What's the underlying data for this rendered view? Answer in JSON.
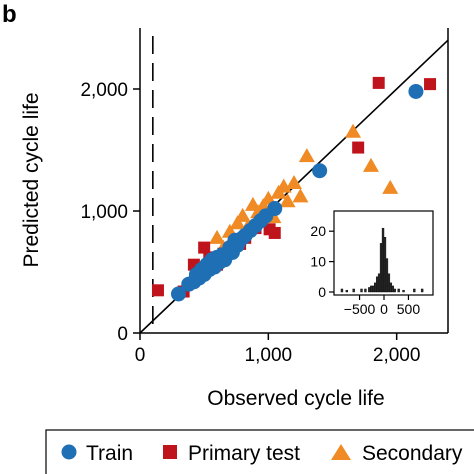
{
  "panel_label": "b",
  "colors": {
    "train": "#1f6fb5",
    "primary_test": "#c0141c",
    "secondary_test": "#f08a24",
    "axis": "#000000"
  },
  "chart_data": {
    "type": "scatter",
    "xlabel": "Observed cycle life",
    "ylabel": "Predicted cycle life",
    "xlim": [
      0,
      2400
    ],
    "ylim": [
      0,
      2500
    ],
    "xticks": [
      0,
      1000,
      2000
    ],
    "xtick_labels": [
      "0",
      "1,000",
      "2,000"
    ],
    "yticks": [
      0,
      1000,
      2000
    ],
    "ytick_labels": [
      "0",
      "1,000",
      "2,000"
    ],
    "identity_line": true,
    "threshold_line_x": 100,
    "legend": {
      "placement": "bottom",
      "entries": [
        "Train",
        "Primary test",
        "Secondary"
      ]
    },
    "series": [
      {
        "name": "Train",
        "marker": "circle",
        "points": [
          [
            300,
            320
          ],
          [
            380,
            400
          ],
          [
            420,
            420
          ],
          [
            440,
            480
          ],
          [
            460,
            450
          ],
          [
            480,
            520
          ],
          [
            500,
            480
          ],
          [
            520,
            560
          ],
          [
            540,
            520
          ],
          [
            560,
            600
          ],
          [
            580,
            540
          ],
          [
            600,
            620
          ],
          [
            620,
            580
          ],
          [
            640,
            640
          ],
          [
            660,
            600
          ],
          [
            700,
            700
          ],
          [
            720,
            660
          ],
          [
            740,
            760
          ],
          [
            760,
            720
          ],
          [
            800,
            780
          ],
          [
            820,
            800
          ],
          [
            860,
            840
          ],
          [
            900,
            880
          ],
          [
            940,
            920
          ],
          [
            980,
            960
          ],
          [
            1050,
            1020
          ],
          [
            1400,
            1330
          ],
          [
            2150,
            1980
          ]
        ]
      },
      {
        "name": "Primary test",
        "marker": "square",
        "points": [
          [
            140,
            350
          ],
          [
            340,
            340
          ],
          [
            420,
            560
          ],
          [
            500,
            700
          ],
          [
            540,
            620
          ],
          [
            600,
            560
          ],
          [
            650,
            650
          ],
          [
            700,
            680
          ],
          [
            780,
            730
          ],
          [
            820,
            780
          ],
          [
            900,
            860
          ],
          [
            1010,
            850
          ],
          [
            1050,
            820
          ],
          [
            1700,
            1520
          ],
          [
            1860,
            2050
          ],
          [
            2260,
            2040
          ]
        ]
      },
      {
        "name": "Secondary",
        "marker": "triangle",
        "points": [
          [
            600,
            780
          ],
          [
            650,
            700
          ],
          [
            700,
            830
          ],
          [
            760,
            900
          ],
          [
            800,
            960
          ],
          [
            840,
            870
          ],
          [
            880,
            1050
          ],
          [
            920,
            990
          ],
          [
            960,
            1040
          ],
          [
            1000,
            1100
          ],
          [
            1040,
            950
          ],
          [
            1080,
            1150
          ],
          [
            1120,
            1200
          ],
          [
            1150,
            1080
          ],
          [
            1200,
            1230
          ],
          [
            1250,
            1120
          ],
          [
            1300,
            1450
          ],
          [
            1660,
            1650
          ],
          [
            1800,
            1370
          ],
          [
            1950,
            1190
          ]
        ]
      }
    ],
    "inset": {
      "type": "histogram",
      "xlim": [
        -900,
        900
      ],
      "ylim": [
        0,
        25
      ],
      "xticks": [
        -500,
        0,
        500
      ],
      "xtick_labels": [
        "−500",
        "0",
        "500"
      ],
      "yticks": [
        0,
        10,
        20
      ],
      "ytick_labels": [
        "0",
        "10",
        "20"
      ],
      "bin_width": 40,
      "bins": [
        {
          "x": -860,
          "h": 1
        },
        {
          "x": -760,
          "h": 0.6
        },
        {
          "x": -620,
          "h": 1
        },
        {
          "x": -460,
          "h": 1
        },
        {
          "x": -380,
          "h": 1
        },
        {
          "x": -300,
          "h": 1.5
        },
        {
          "x": -260,
          "h": 2
        },
        {
          "x": -220,
          "h": 2
        },
        {
          "x": -180,
          "h": 3
        },
        {
          "x": -140,
          "h": 5
        },
        {
          "x": -100,
          "h": 6
        },
        {
          "x": -60,
          "h": 16
        },
        {
          "x": -20,
          "h": 21
        },
        {
          "x": 20,
          "h": 18
        },
        {
          "x": 60,
          "h": 11
        },
        {
          "x": 100,
          "h": 6
        },
        {
          "x": 140,
          "h": 3
        },
        {
          "x": 180,
          "h": 2
        },
        {
          "x": 220,
          "h": 1
        },
        {
          "x": 300,
          "h": 1
        },
        {
          "x": 400,
          "h": 0.6
        },
        {
          "x": 620,
          "h": 1
        },
        {
          "x": 780,
          "h": 1
        }
      ]
    }
  }
}
